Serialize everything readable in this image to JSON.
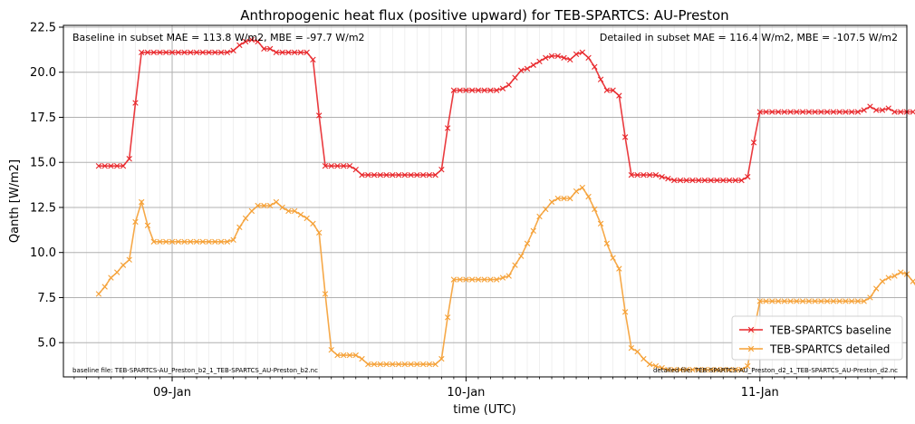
{
  "chart_data": {
    "type": "line",
    "title": "Anthropogenic heat flux (positive upward) for TEB-SPARTCS: AU-Preston",
    "xlabel": "time (UTC)",
    "ylabel": "Qanth [W/m2]",
    "x_unit": "days (UTC), 0 = 09-Jan 00:00",
    "xlim": [
      -0.37,
      2.5
    ],
    "ylim": [
      3.1,
      22.6
    ],
    "x_ticks": [
      {
        "value": 0,
        "label": "09-Jan"
      },
      {
        "value": 1,
        "label": "10-Jan"
      },
      {
        "value": 2,
        "label": "11-Jan"
      }
    ],
    "y_ticks": [
      {
        "value": 5,
        "label": "5.0"
      },
      {
        "value": 7.5,
        "label": "7.5"
      },
      {
        "value": 10,
        "label": "10.0"
      },
      {
        "value": 12.5,
        "label": "12.5"
      },
      {
        "value": 15,
        "label": "15.0"
      },
      {
        "value": 17.5,
        "label": "17.5"
      },
      {
        "value": 20,
        "label": "20.0"
      },
      {
        "value": 22.5,
        "label": "22.5"
      }
    ],
    "grid": true,
    "annotations": {
      "top_left": "Baseline in subset MAE = 113.8 W/m2, MBE = -97.7 W/m2",
      "top_right": "Detailed in subset MAE = 116.4 W/m2, MBE = -107.5 W/m2",
      "bottom_left": "baseline file: TEB-SPARTCS-AU_Preston_b2_1_TEB-SPARTCS_AU-Preston_b2.nc",
      "bottom_right": "detailed file: TEB-SPARTCS-AU_Preston_d2_1_TEB-SPARTCS_AU-Preston_d2.nc"
    },
    "legend_position": "lower-right",
    "series": [
      {
        "name": "TEB-SPARTCS baseline",
        "color": "#e8262a",
        "marker": "x",
        "x_start": -0.25,
        "x_step": 0.020833,
        "values": [
          14.8,
          14.8,
          14.8,
          14.8,
          14.8,
          15.2,
          18.3,
          21.1,
          21.1,
          21.1,
          21.1,
          21.1,
          21.1,
          21.1,
          21.1,
          21.1,
          21.1,
          21.1,
          21.1,
          21.1,
          21.1,
          21.1,
          21.2,
          21.5,
          21.7,
          21.8,
          21.7,
          21.3,
          21.3,
          21.1,
          21.1,
          21.1,
          21.1,
          21.1,
          21.1,
          20.7,
          17.6,
          14.8,
          14.8,
          14.8,
          14.8,
          14.8,
          14.6,
          14.3,
          14.3,
          14.3,
          14.3,
          14.3,
          14.3,
          14.3,
          14.3,
          14.3,
          14.3,
          14.3,
          14.3,
          14.3,
          14.6,
          16.9,
          19.0,
          19.0,
          19.0,
          19.0,
          19.0,
          19.0,
          19.0,
          19.0,
          19.1,
          19.3,
          19.7,
          20.1,
          20.2,
          20.4,
          20.6,
          20.8,
          20.9,
          20.9,
          20.8,
          20.7,
          21.0,
          21.1,
          20.8,
          20.3,
          19.6,
          19.0,
          19.0,
          18.7,
          16.4,
          14.3,
          14.3,
          14.3,
          14.3,
          14.3,
          14.2,
          14.1,
          14.0,
          14.0,
          14.0,
          14.0,
          14.0,
          14.0,
          14.0,
          14.0,
          14.0,
          14.0,
          14.0,
          14.0,
          14.2,
          16.1,
          17.8,
          17.8,
          17.8,
          17.8,
          17.8,
          17.8,
          17.8,
          17.8,
          17.8,
          17.8,
          17.8,
          17.8,
          17.8,
          17.8,
          17.8,
          17.8,
          17.8,
          17.9,
          18.1,
          17.9,
          17.9,
          18.0,
          17.8,
          17.8,
          17.8,
          17.8
        ]
      },
      {
        "name": "TEB-SPARTCS detailed",
        "color": "#f5a035",
        "marker": "x",
        "x_start": -0.25,
        "x_step": 0.020833,
        "values": [
          7.7,
          8.1,
          8.6,
          8.9,
          9.3,
          9.6,
          11.7,
          12.8,
          11.5,
          10.6,
          10.6,
          10.6,
          10.6,
          10.6,
          10.6,
          10.6,
          10.6,
          10.6,
          10.6,
          10.6,
          10.6,
          10.6,
          10.7,
          11.4,
          11.9,
          12.3,
          12.6,
          12.6,
          12.6,
          12.8,
          12.5,
          12.3,
          12.3,
          12.1,
          11.9,
          11.6,
          11.1,
          7.7,
          4.6,
          4.3,
          4.3,
          4.3,
          4.3,
          4.1,
          3.8,
          3.8,
          3.8,
          3.8,
          3.8,
          3.8,
          3.8,
          3.8,
          3.8,
          3.8,
          3.8,
          3.8,
          4.1,
          6.4,
          8.5,
          8.5,
          8.5,
          8.5,
          8.5,
          8.5,
          8.5,
          8.5,
          8.6,
          8.7,
          9.3,
          9.8,
          10.5,
          11.2,
          12.0,
          12.4,
          12.8,
          13.0,
          13.0,
          13.0,
          13.4,
          13.6,
          13.1,
          12.4,
          11.6,
          10.5,
          9.7,
          9.1,
          6.7,
          4.7,
          4.5,
          4.1,
          3.8,
          3.7,
          3.6,
          3.5,
          3.5,
          3.5,
          3.5,
          3.5,
          3.5,
          3.5,
          3.5,
          3.5,
          3.5,
          3.5,
          3.5,
          3.5,
          3.7,
          5.6,
          7.3,
          7.3,
          7.3,
          7.3,
          7.3,
          7.3,
          7.3,
          7.3,
          7.3,
          7.3,
          7.3,
          7.3,
          7.3,
          7.3,
          7.3,
          7.3,
          7.3,
          7.3,
          7.5,
          8.0,
          8.4,
          8.6,
          8.7,
          8.9,
          8.8,
          8.4,
          7.9,
          7.5
        ]
      }
    ]
  }
}
